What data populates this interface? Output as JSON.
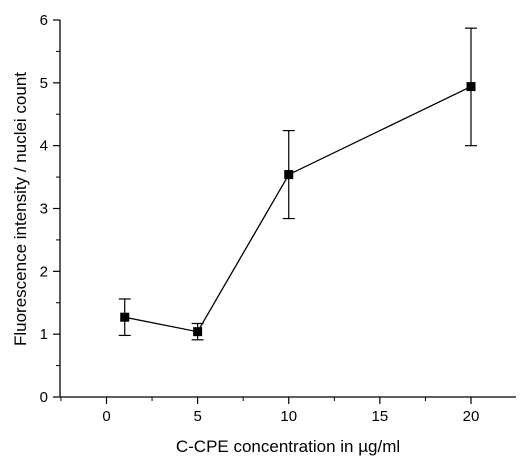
{
  "chart_data": {
    "type": "line",
    "title": "",
    "xlabel": "C-CPE concentration in µg/ml",
    "ylabel": "Fluorescence intensity / nuclei count",
    "x_axis": {
      "range": [
        0,
        20
      ],
      "ticks": [
        0,
        5,
        10,
        15,
        20
      ],
      "tick_labels": [
        "0",
        "5",
        "10",
        "15",
        "20"
      ]
    },
    "y_axis": {
      "range": [
        0,
        6
      ],
      "ticks": [
        0,
        1,
        2,
        3,
        4,
        5,
        6
      ],
      "tick_labels": [
        "0",
        "1",
        "2",
        "3",
        "4",
        "5",
        "6"
      ],
      "minor_ticks": [
        0.5,
        1.5,
        2.5,
        3.5,
        4.5,
        5.5
      ]
    },
    "grid": false,
    "legend": "none",
    "series": [
      {
        "marker": "square",
        "color": "#000000",
        "points": [
          {
            "x": 1,
            "y": 1.27,
            "err_low": 0.98,
            "err_high": 1.56
          },
          {
            "x": 5,
            "y": 1.04,
            "err_low": 0.91,
            "err_high": 1.17
          },
          {
            "x": 10,
            "y": 3.54,
            "err_low": 2.84,
            "err_high": 4.24
          },
          {
            "x": 20,
            "y": 4.94,
            "err_low": 4.0,
            "err_high": 5.87
          }
        ]
      }
    ]
  }
}
